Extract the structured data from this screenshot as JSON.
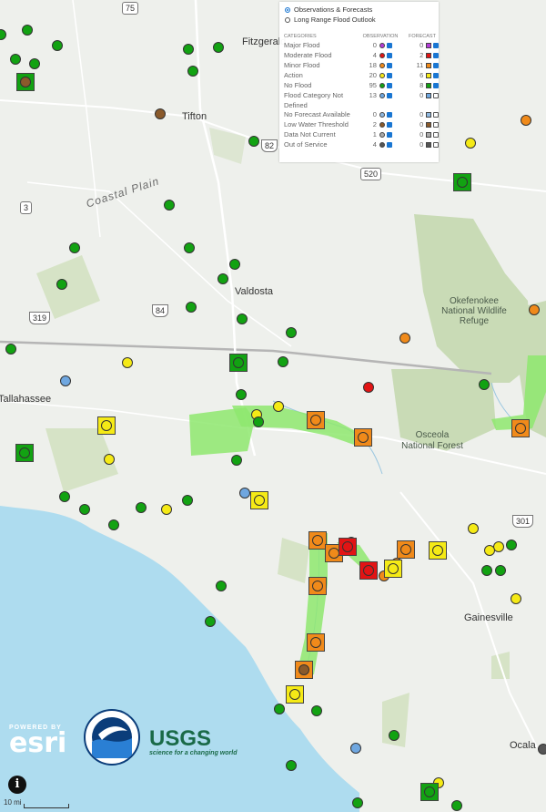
{
  "legend": {
    "mode_options": [
      {
        "label": "Observations & Forecasts",
        "selected": true
      },
      {
        "label": "Long Range Flood Outlook",
        "selected": false
      }
    ],
    "col_categories": "CATEGORIES",
    "col_observation": "OBSERVATION",
    "col_forecast": "FORECAST",
    "rows": [
      {
        "label": "Major Flood",
        "obs": "0",
        "fc": "0",
        "color": "#b43bd8"
      },
      {
        "label": "Moderate Flood",
        "obs": "4",
        "fc": "2",
        "color": "#e21414"
      },
      {
        "label": "Minor Flood",
        "obs": "18",
        "fc": "11",
        "color": "#f08a1a"
      },
      {
        "label": "Action",
        "obs": "20",
        "fc": "6",
        "color": "#f5ea16"
      },
      {
        "label": "No Flood",
        "obs": "95",
        "fc": "8",
        "color": "#12a212"
      },
      {
        "label": "Flood Category Not Defined",
        "obs": "13",
        "fc": "0",
        "color": "#6fa7e0"
      },
      {
        "label": "No Forecast Available",
        "obs": "0",
        "fc": "0",
        "color": "#8fb8e0"
      },
      {
        "label": "Low Water Threshold",
        "obs": "2",
        "fc": "0",
        "color": "#8a5a2b"
      },
      {
        "label": "Data Not Current",
        "obs": "1",
        "fc": "0",
        "color": "#aaaaaa"
      },
      {
        "label": "Out of Service",
        "obs": "4",
        "fc": "0",
        "color": "#555555"
      }
    ]
  },
  "places": {
    "fitzgerald": "Fitzgerald",
    "tifton": "Tifton",
    "coastal_plain": "Coastal Plain",
    "valdosta": "Valdosta",
    "tallahassee": "Tallahassee",
    "okefenokee": "Okefenokee National Wildlife Refuge",
    "osceola": "Osceola National Forest",
    "gainesville": "Gainesville",
    "ocala": "Ocala"
  },
  "routes": {
    "r75": "75",
    "r82": "82",
    "r520": "520",
    "r3": "3",
    "r84": "84",
    "r319": "319",
    "r301": "301"
  },
  "attribution": {
    "esri_powered": "POWERED BY",
    "esri_name": "esri",
    "noaa": "NOAA",
    "usgs_name": "USGS",
    "usgs_tagline": "science for a changing world"
  },
  "info_icon": "i",
  "scale_label": "10 mi",
  "colors": {
    "water": "#aedcef",
    "land": "#eef0ec",
    "forest": "#c9dbb6",
    "flood_zone": "#8ee86e",
    "no_flood": "#12a212",
    "action": "#f5ea16",
    "minor": "#f08a1a",
    "moderate": "#e21414",
    "not_defined": "#6fa7e0",
    "low_water": "#8a5a2b"
  }
}
